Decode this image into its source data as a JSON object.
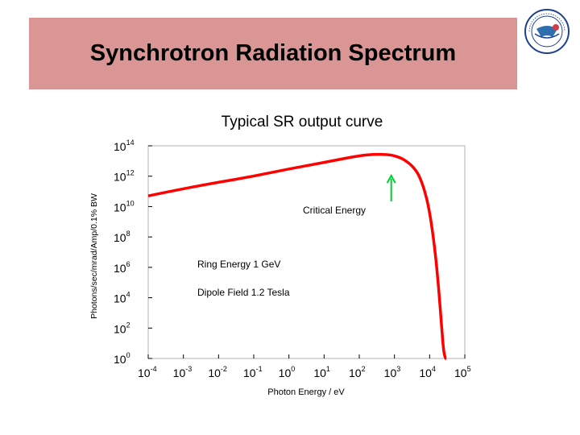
{
  "slide": {
    "title": "Synchrotron Radiation Spectrum"
  },
  "logo": {
    "icon": "institute-emblem-icon",
    "colors": [
      "#1f3f8f",
      "#d23b4a",
      "#2f6fb0"
    ]
  },
  "chart_data": {
    "type": "line",
    "title": "Typical SR output curve",
    "xlabel": "Photon Energy / eV",
    "ylabel": "Photons/sec/mrad/Amp/0.1% BW",
    "x_scale": "log",
    "y_scale": "log",
    "xlim": [
      0.0001,
      100000
    ],
    "ylim": [
      1,
      100000000000000
    ],
    "x_ticks": [
      {
        "base": "10",
        "exp": "-4"
      },
      {
        "base": "10",
        "exp": "-3"
      },
      {
        "base": "10",
        "exp": "-2"
      },
      {
        "base": "10",
        "exp": "-1"
      },
      {
        "base": "10",
        "exp": "0"
      },
      {
        "base": "10",
        "exp": "1"
      },
      {
        "base": "10",
        "exp": "2"
      },
      {
        "base": "10",
        "exp": "3"
      },
      {
        "base": "10",
        "exp": "4"
      },
      {
        "base": "10",
        "exp": "5"
      }
    ],
    "y_ticks": [
      {
        "base": "10",
        "exp": "0"
      },
      {
        "base": "10",
        "exp": "2"
      },
      {
        "base": "10",
        "exp": "4"
      },
      {
        "base": "10",
        "exp": "6"
      },
      {
        "base": "10",
        "exp": "8"
      },
      {
        "base": "10",
        "exp": "10"
      },
      {
        "base": "10",
        "exp": "12"
      },
      {
        "base": "10",
        "exp": "14"
      }
    ],
    "series": [
      {
        "color": "#ff0000",
        "x": [
          0.0001,
          0.001,
          0.01,
          0.1,
          1,
          10,
          100,
          300,
          700,
          1000,
          1500,
          2000,
          3000,
          4000,
          5000,
          7000,
          10000,
          14000,
          18000,
          22000,
          25000,
          28000,
          30000
        ],
        "y": [
          50000000000.0,
          150000000000.0,
          400000000000.0,
          1000000000000.0,
          3000000000000.0,
          8000000000000.0,
          23000000000000.0,
          28000000000000.0,
          26000000000000.0,
          22000000000000.0,
          16000000000000.0,
          11000000000000.0,
          5500000000000.0,
          2500000000000.0,
          1100000000000.0,
          150000000000.0,
          5000000000.0,
          20000000.0,
          50000.0,
          100,
          3,
          1,
          1
        ]
      }
    ],
    "annotations": [
      {
        "text": "Critical Energy",
        "arrow_x": 1000,
        "arrow_color": "#00cc33"
      },
      {
        "text": "Ring Energy 1 GeV"
      },
      {
        "text": "Dipole Field 1.2 Tesla"
      }
    ],
    "grid": false,
    "legend": "none"
  }
}
